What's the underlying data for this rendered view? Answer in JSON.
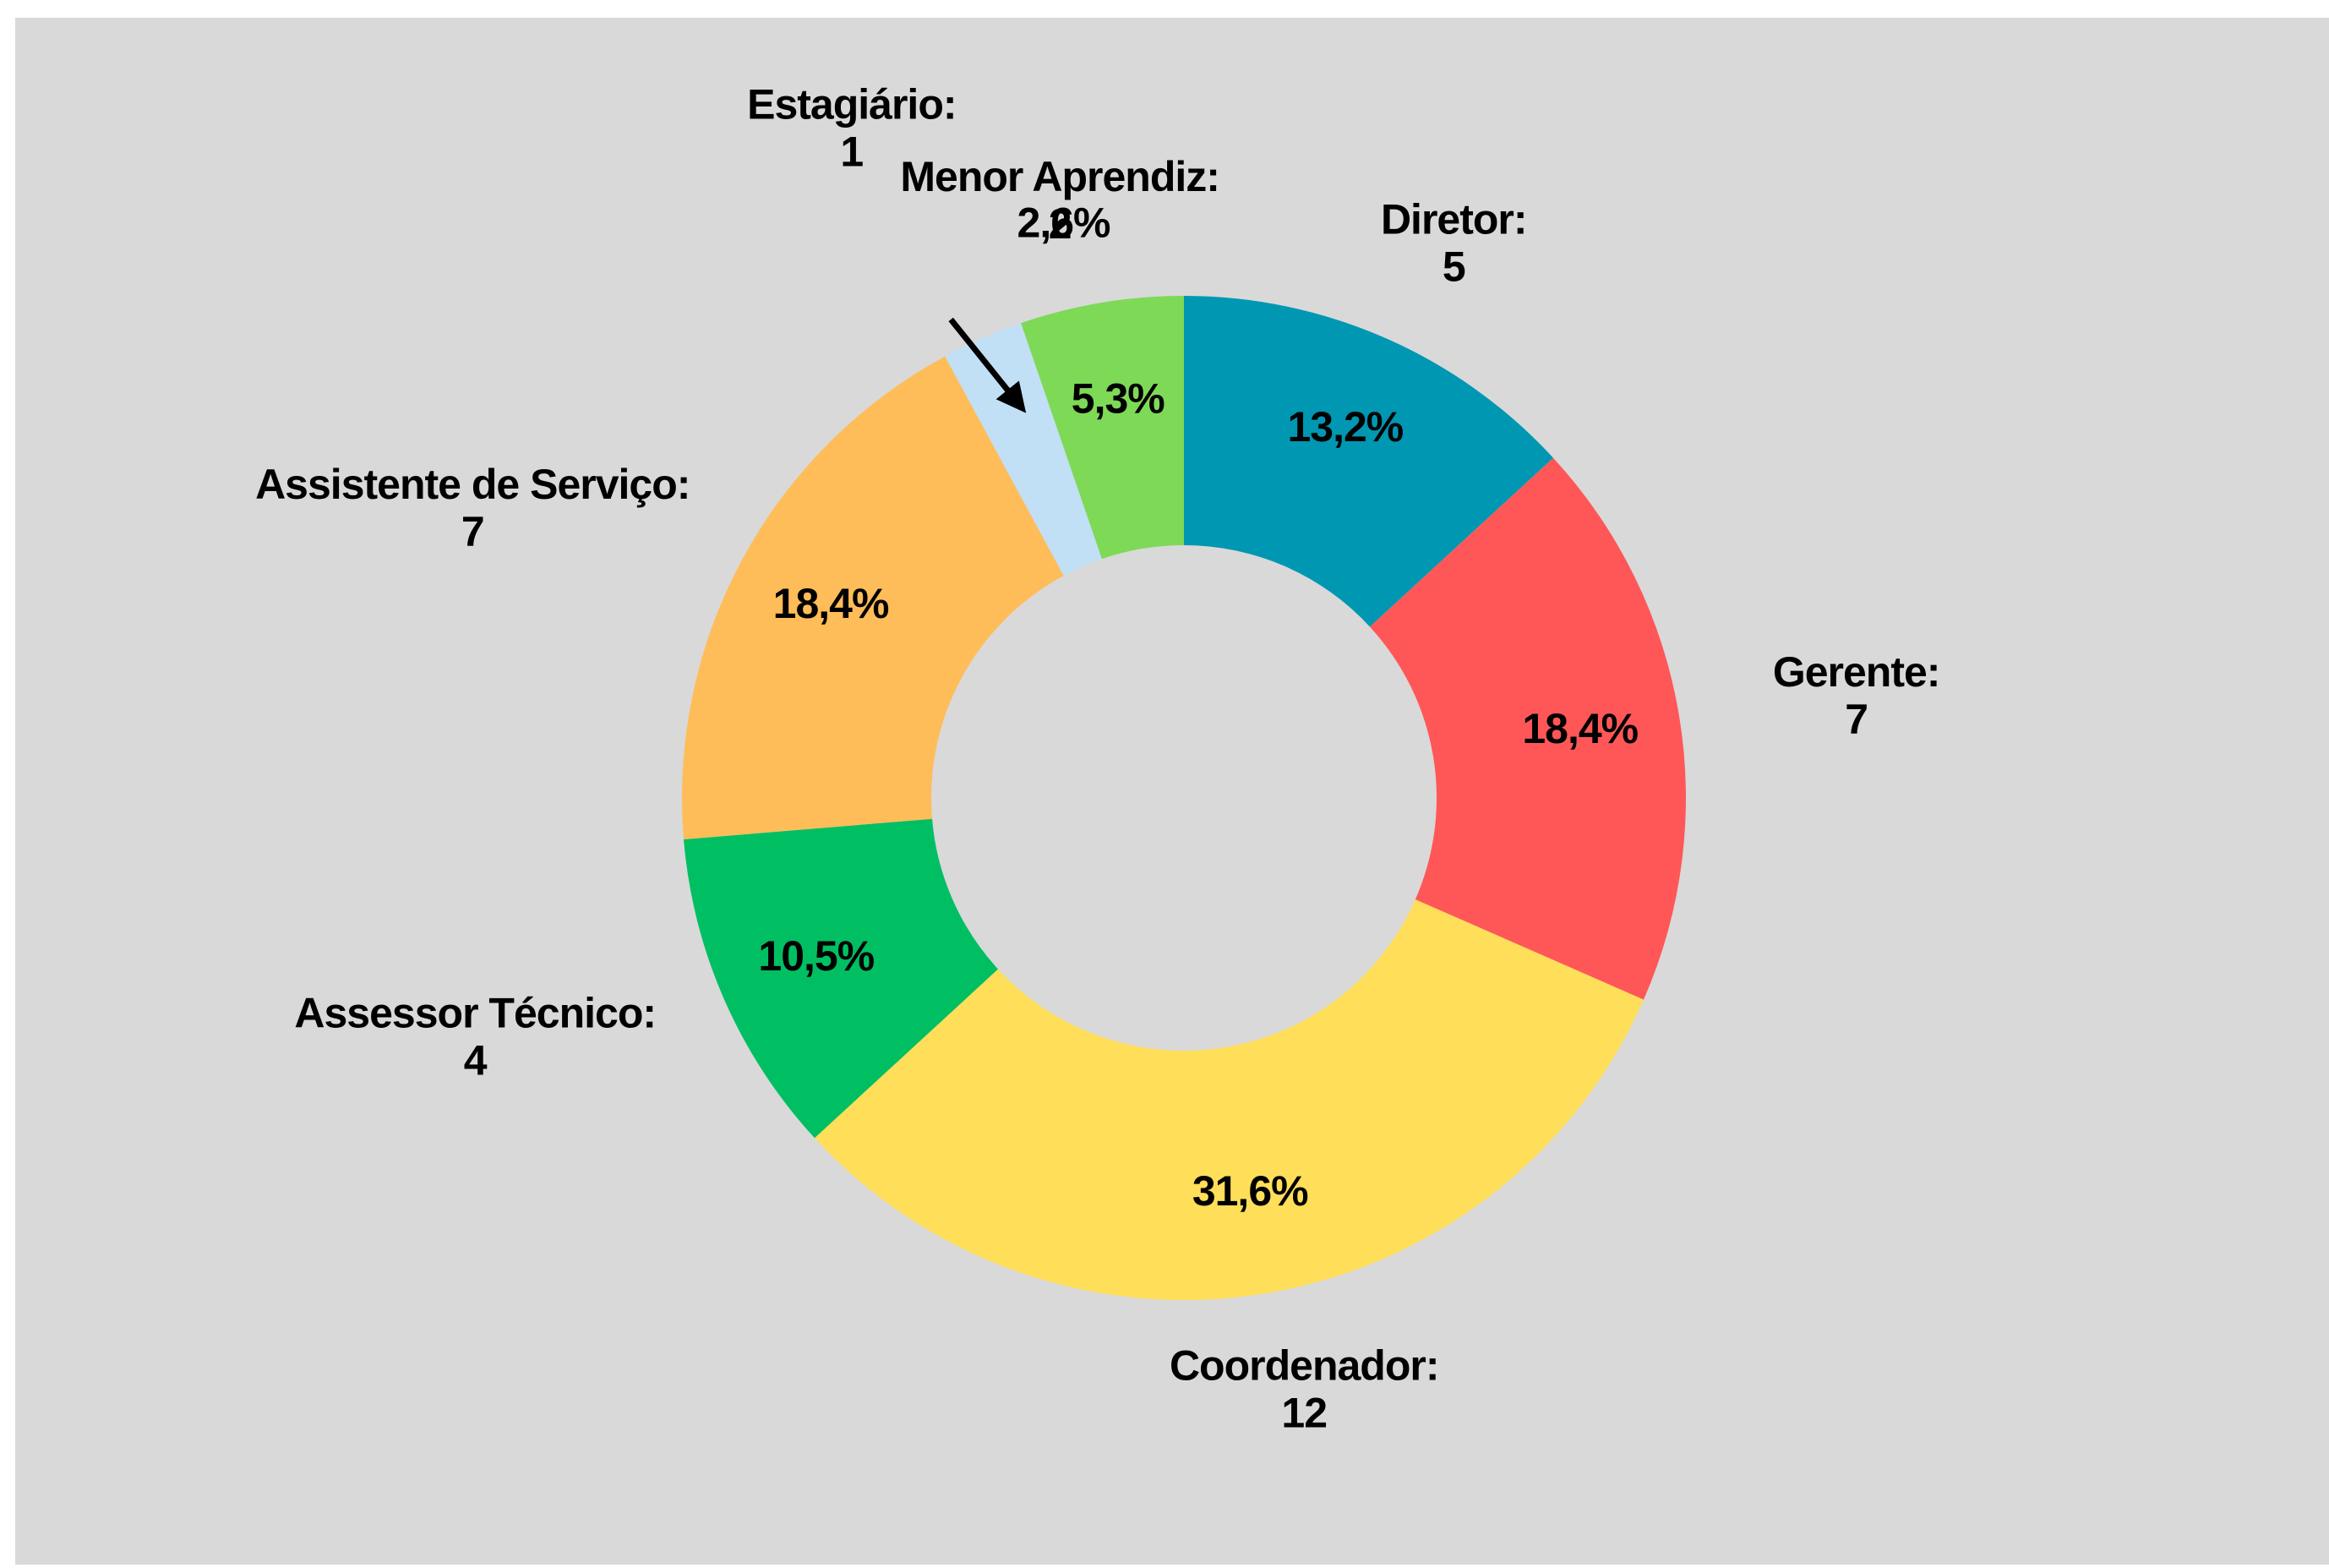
{
  "chart_data": {
    "type": "donut",
    "categories": [
      "Diretor:",
      "Gerente:",
      "Coordenador:",
      "Assessor Técnico:",
      "Assistente de Serviço:",
      "Estagiário:",
      "Menor Aprendiz:"
    ],
    "values": [
      5,
      7,
      12,
      4,
      7,
      1,
      2
    ],
    "percentages": [
      13.2,
      18.4,
      31.6,
      10.5,
      18.4,
      2.6,
      5.3
    ],
    "percentage_labels": [
      "13,2%",
      "18,4%",
      "31,6%",
      "10,5%",
      "18,4%",
      "2,6%",
      "5,3%"
    ],
    "colors": [
      "#0097b2",
      "#ff5757",
      "#ffde59",
      "#00bf63",
      "#ffbd59",
      "#c1dff5",
      "#7ed957"
    ]
  }
}
